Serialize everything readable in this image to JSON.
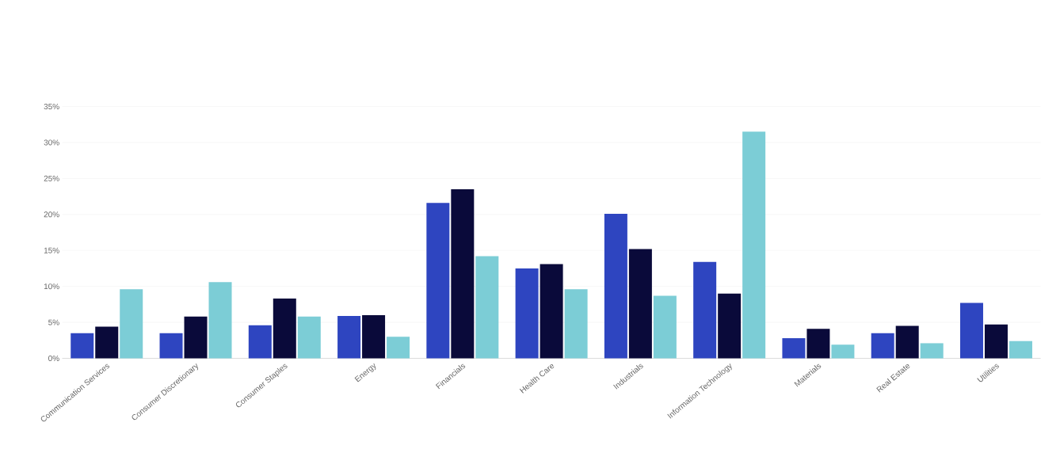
{
  "chart_data": {
    "type": "bar",
    "categories": [
      "Communication Services",
      "Consumer Discretionary",
      "Consumer Staples",
      "Energy",
      "Financials",
      "Health Care",
      "Industrials",
      "Information Technology",
      "Materials",
      "Real Estate",
      "Utilities"
    ],
    "series": [
      {
        "color": "#2e45c0",
        "values": [
          3.5,
          3.5,
          4.6,
          5.9,
          21.6,
          12.5,
          20.1,
          13.4,
          2.8,
          3.5,
          7.7
        ]
      },
      {
        "color": "#0a0a3a",
        "values": [
          4.4,
          5.8,
          8.3,
          6.0,
          23.5,
          13.1,
          15.2,
          9.0,
          4.1,
          4.5,
          4.7
        ]
      },
      {
        "color": "#7ccdd6",
        "values": [
          9.6,
          10.6,
          5.8,
          3.0,
          14.2,
          9.6,
          8.7,
          31.5,
          1.9,
          2.1,
          2.4
        ]
      }
    ],
    "ylim": [
      0,
      35
    ],
    "yticks": [
      {
        "value": 0,
        "label": "0%"
      },
      {
        "value": 5,
        "label": "5%"
      },
      {
        "value": 10,
        "label": "10%"
      },
      {
        "value": 15,
        "label": "15%"
      },
      {
        "value": 20,
        "label": "20%"
      },
      {
        "value": 25,
        "label": "25%"
      },
      {
        "value": 30,
        "label": "30%"
      },
      {
        "value": 35,
        "label": "35%"
      }
    ],
    "grid": "y"
  }
}
